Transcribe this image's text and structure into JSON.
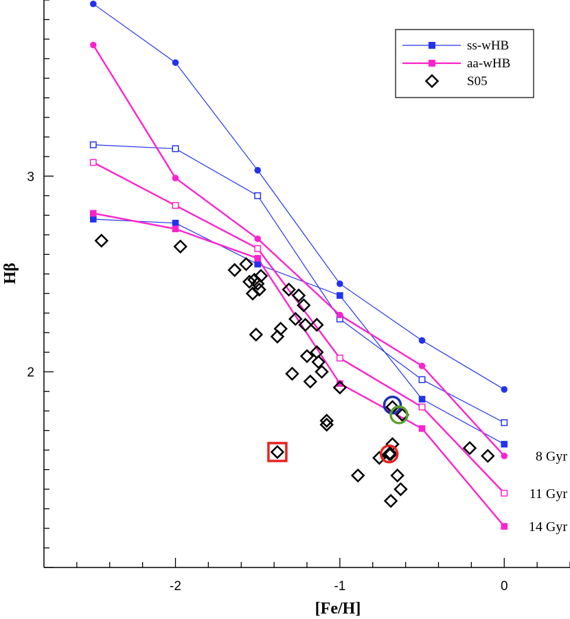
{
  "chart_data": {
    "type": "scatter",
    "xlabel": "[Fe/H]",
    "ylabel": "Hβ",
    "xlim": [
      -2.8,
      0.4
    ],
    "ylim": [
      1.0,
      3.9
    ],
    "x_ticks": [
      -2,
      -1,
      0
    ],
    "y_ticks": [
      2,
      3
    ],
    "grid": false,
    "legend_position": "top-right",
    "legend": [
      {
        "label": "ss-wHB",
        "symbol": "line-filled-square",
        "color": "#2233ee"
      },
      {
        "label": "aa-wHB",
        "symbol": "line-filled-square",
        "color": "#ff22cc"
      },
      {
        "label": "S05",
        "symbol": "open-diamond",
        "color": "#000000"
      }
    ],
    "colors": {
      "ss": "#2233ee",
      "aa": "#ff22cc",
      "obs": "#000000",
      "blue_circle": "#1a2fb0",
      "green_circle": "#5aa02c",
      "red_marker": "#e8221f"
    },
    "age_labels": [
      "8 Gyr",
      "11 Gyr",
      "14 Gyr"
    ],
    "series": [
      {
        "group": "ss-wHB",
        "age": "8 Gyr",
        "marker": "filled-circle",
        "x": [
          -2.5,
          -2.0,
          -1.5,
          -1.0,
          -0.5,
          0.0
        ],
        "y": [
          3.88,
          3.58,
          3.03,
          2.45,
          2.16,
          1.91
        ]
      },
      {
        "group": "ss-wHB",
        "age": "11 Gyr",
        "marker": "open-square",
        "x": [
          -2.5,
          -2.0,
          -1.5,
          -1.0,
          -0.5,
          0.0
        ],
        "y": [
          3.16,
          3.14,
          2.9,
          2.27,
          1.96,
          1.74
        ]
      },
      {
        "group": "ss-wHB",
        "age": "14 Gyr",
        "marker": "filled-square",
        "x": [
          -2.5,
          -2.0,
          -1.5,
          -1.0,
          -0.5,
          0.0
        ],
        "y": [
          2.78,
          2.76,
          2.55,
          2.39,
          1.86,
          1.63
        ]
      },
      {
        "group": "aa-wHB",
        "age": "8 Gyr",
        "marker": "filled-circle",
        "x": [
          -2.5,
          -2.0,
          -1.5,
          -1.0,
          -0.5,
          0.0
        ],
        "y": [
          3.67,
          2.99,
          2.68,
          2.29,
          2.03,
          1.57
        ]
      },
      {
        "group": "aa-wHB",
        "age": "11 Gyr",
        "marker": "open-square",
        "x": [
          -2.5,
          -2.0,
          -1.5,
          -1.0,
          -0.5,
          0.0
        ],
        "y": [
          3.07,
          2.85,
          2.63,
          2.07,
          1.82,
          1.38
        ]
      },
      {
        "group": "aa-wHB",
        "age": "14 Gyr",
        "marker": "filled-square",
        "x": [
          -2.5,
          -2.0,
          -1.5,
          -1.0,
          -0.5,
          0.0
        ],
        "y": [
          2.81,
          2.73,
          2.58,
          1.94,
          1.71,
          1.21
        ]
      }
    ],
    "observations": {
      "x": [
        -2.45,
        -1.97,
        -1.64,
        -1.57,
        -1.55,
        -1.52,
        -1.53,
        -1.49,
        -1.5,
        -1.48,
        -1.31,
        -1.27,
        -1.25,
        -1.22,
        -1.14,
        -1.2,
        -1.21,
        -1.51,
        -1.38,
        -1.36,
        -1.29,
        -1.18,
        -1.14,
        -1.13,
        -1.11,
        -1.08,
        -1.08,
        -1.0,
        -0.89,
        -0.76,
        -0.7,
        -0.68,
        -0.69,
        -0.68,
        -0.65,
        -0.63,
        -0.62,
        -0.69,
        -0.21,
        -0.1,
        -1.38
      ],
      "y": [
        2.67,
        2.64,
        2.52,
        2.55,
        2.46,
        2.47,
        2.4,
        2.42,
        2.45,
        2.49,
        2.42,
        2.27,
        2.39,
        2.34,
        2.24,
        2.08,
        2.24,
        2.19,
        2.18,
        2.22,
        1.99,
        1.95,
        2.1,
        2.05,
        2.0,
        1.75,
        1.73,
        1.92,
        1.47,
        1.56,
        1.58,
        1.63,
        1.58,
        1.82,
        1.47,
        1.4,
        1.78,
        1.34,
        1.61,
        1.57,
        1.59
      ]
    },
    "highlights": [
      {
        "shape": "circle",
        "color": "blue",
        "x": -0.68,
        "y": 1.83
      },
      {
        "shape": "circle",
        "color": "green",
        "x": -0.64,
        "y": 1.78
      },
      {
        "shape": "circle",
        "color": "red",
        "x": -0.7,
        "y": 1.58
      },
      {
        "shape": "square",
        "color": "red",
        "x": -1.38,
        "y": 1.59
      }
    ]
  }
}
